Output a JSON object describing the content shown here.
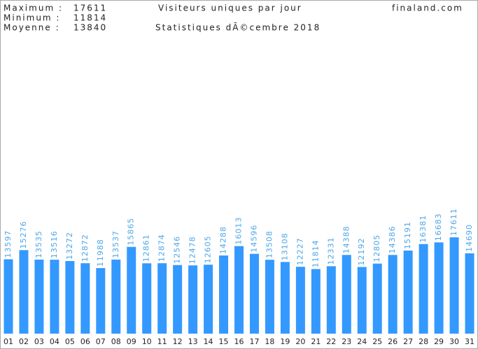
{
  "chart_data": {
    "type": "bar",
    "title": "Visiteurs uniques par jour",
    "subtitle": "Statistiques dÃ©cembre 2018",
    "site": "finaland.com",
    "stats": [
      {
        "label": "Maximum :",
        "value": 17611
      },
      {
        "label": "Minimum :",
        "value": 11814
      },
      {
        "label": "Moyenne :",
        "value": 13840
      }
    ],
    "categories": [
      "01",
      "02",
      "03",
      "04",
      "05",
      "06",
      "07",
      "08",
      "09",
      "10",
      "11",
      "12",
      "13",
      "14",
      "15",
      "16",
      "17",
      "18",
      "19",
      "20",
      "21",
      "22",
      "23",
      "24",
      "25",
      "26",
      "27",
      "28",
      "29",
      "30",
      "31"
    ],
    "values": [
      13597,
      15276,
      13535,
      13516,
      13272,
      12872,
      11988,
      13537,
      15865,
      12861,
      12874,
      12546,
      12478,
      12605,
      14288,
      16013,
      14596,
      13508,
      13108,
      12227,
      11814,
      12331,
      14388,
      12192,
      12805,
      14386,
      15191,
      16381,
      16683,
      17611,
      14690
    ],
    "color": "#3399ff",
    "label_color": "#4da6e8"
  }
}
